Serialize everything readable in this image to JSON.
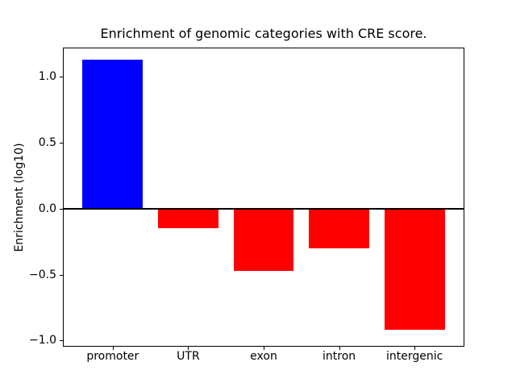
{
  "chart_data": {
    "type": "bar",
    "title": "Enrichment of genomic categories with CRE score.",
    "xlabel": "",
    "ylabel": "Enrichment (log10)",
    "categories": [
      "promoter",
      "UTR",
      "exon",
      "intron",
      "intergenic"
    ],
    "values": [
      1.13,
      -0.15,
      -0.47,
      -0.3,
      -0.92
    ],
    "bar_colors": [
      "#0000ff",
      "#ff0000",
      "#ff0000",
      "#ff0000",
      "#ff0000"
    ],
    "positive_color": "#0000ff",
    "negative_color": "#ff0000",
    "bar_width": 0.8,
    "ylim": [
      -1.04,
      1.215
    ],
    "xlim": [
      -0.65,
      4.65
    ],
    "yticks": [
      1.0,
      0.5,
      0.0,
      -0.5,
      -1.0
    ],
    "ytick_labels": [
      "1.0",
      "0.5",
      "0.0",
      "−0.5",
      "−1.0"
    ],
    "zero_line": true,
    "grid": false,
    "legend": null,
    "background": "#ffffff",
    "spine_color": "#000000"
  }
}
